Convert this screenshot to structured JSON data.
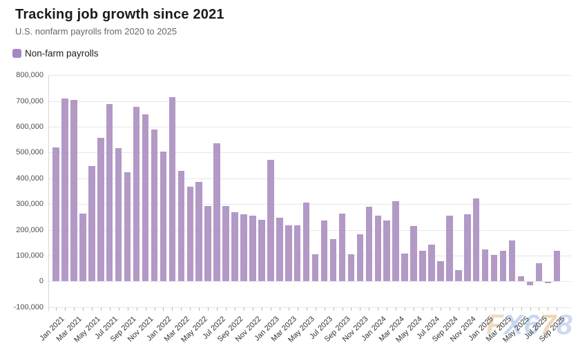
{
  "header": {
    "title": "Tracking job growth since 2021",
    "subtitle": "U.S. nonfarm payrolls from 2020 to 2025"
  },
  "legend": {
    "label": "Non-farm payrolls",
    "swatch_color": "#a687c6"
  },
  "watermark": {
    "text": "FX678",
    "letters": [
      {
        "ch": "F",
        "color": "#edd5b8"
      },
      {
        "ch": "X",
        "color": "#bfd1ec"
      },
      {
        "ch": "6",
        "color": "#bfd1ec"
      },
      {
        "ch": "7",
        "color": "#eccfae"
      },
      {
        "ch": "8",
        "color": "#c6d4ee"
      }
    ]
  },
  "chart_data": {
    "type": "bar",
    "title": "Tracking job growth since 2021",
    "subtitle": "U.S. nonfarm payrolls from 2020 to 2025",
    "series": [
      {
        "name": "Non-farm payrolls",
        "values": [
          520000,
          710000,
          704000,
          263000,
          447000,
          557000,
          689000,
          517000,
          424000,
          677000,
          647000,
          588000,
          504000,
          714000,
          428000,
          368000,
          386000,
          293000,
          537000,
          292000,
          269000,
          261000,
          256000,
          239000,
          472000,
          248000,
          217000,
          217000,
          306000,
          105000,
          236000,
          165000,
          262000,
          105000,
          182000,
          290000,
          256000,
          236000,
          310000,
          108000,
          216000,
          118000,
          144000,
          78000,
          255000,
          44000,
          261000,
          323000,
          125000,
          102000,
          120000,
          158000,
          19000,
          -13000,
          72000,
          -4000,
          119000
        ]
      }
    ],
    "x": [
      "Jan 2021",
      "Feb 2021",
      "Mar 2021",
      "Apr 2021",
      "May 2021",
      "Jun 2021",
      "Jul 2021",
      "Aug 2021",
      "Sep 2021",
      "Oct 2021",
      "Nov 2021",
      "Dec 2021",
      "Jan 2022",
      "Feb 2022",
      "Mar 2022",
      "Apr 2022",
      "May 2022",
      "Jun 2022",
      "Jul 2022",
      "Aug 2022",
      "Sep 2022",
      "Oct 2022",
      "Nov 2022",
      "Dec 2022",
      "Jan 2023",
      "Feb 2023",
      "Mar 2023",
      "Apr 2023",
      "May 2023",
      "Jun 2023",
      "Jul 2023",
      "Aug 2023",
      "Sep 2023",
      "Oct 2023",
      "Nov 2023",
      "Dec 2023",
      "Jan 2024",
      "Feb 2024",
      "Mar 2024",
      "Apr 2024",
      "May 2024",
      "Jun 2024",
      "Jul 2024",
      "Aug 2024",
      "Sep 2024",
      "Oct 2024",
      "Nov 2024",
      "Dec 2024",
      "Jan 2025",
      "Feb 2025",
      "Mar 2025",
      "Apr 2025",
      "May 2025",
      "Jun 2025",
      "Jul 2025",
      "Aug 2025",
      "Sep 2025"
    ],
    "x_label_every": 2,
    "xlabel": "",
    "ylabel": "",
    "ylim": [
      -100000,
      800000
    ],
    "y_ticks": [
      {
        "value": 800000,
        "label": "800,000"
      },
      {
        "value": 700000,
        "label": "700,000"
      },
      {
        "value": 600000,
        "label": "600,000"
      },
      {
        "value": 500000,
        "label": "500,000"
      },
      {
        "value": 400000,
        "label": "400,000"
      },
      {
        "value": 300000,
        "label": "300,000"
      },
      {
        "value": 200000,
        "label": "200,000"
      },
      {
        "value": 100000,
        "label": "100,000"
      },
      {
        "value": 0,
        "label": "0"
      },
      {
        "value": -100000,
        "label": "-100,000"
      }
    ],
    "grid": true,
    "legend_position": "top-left",
    "bar_color": "#b399c6"
  }
}
